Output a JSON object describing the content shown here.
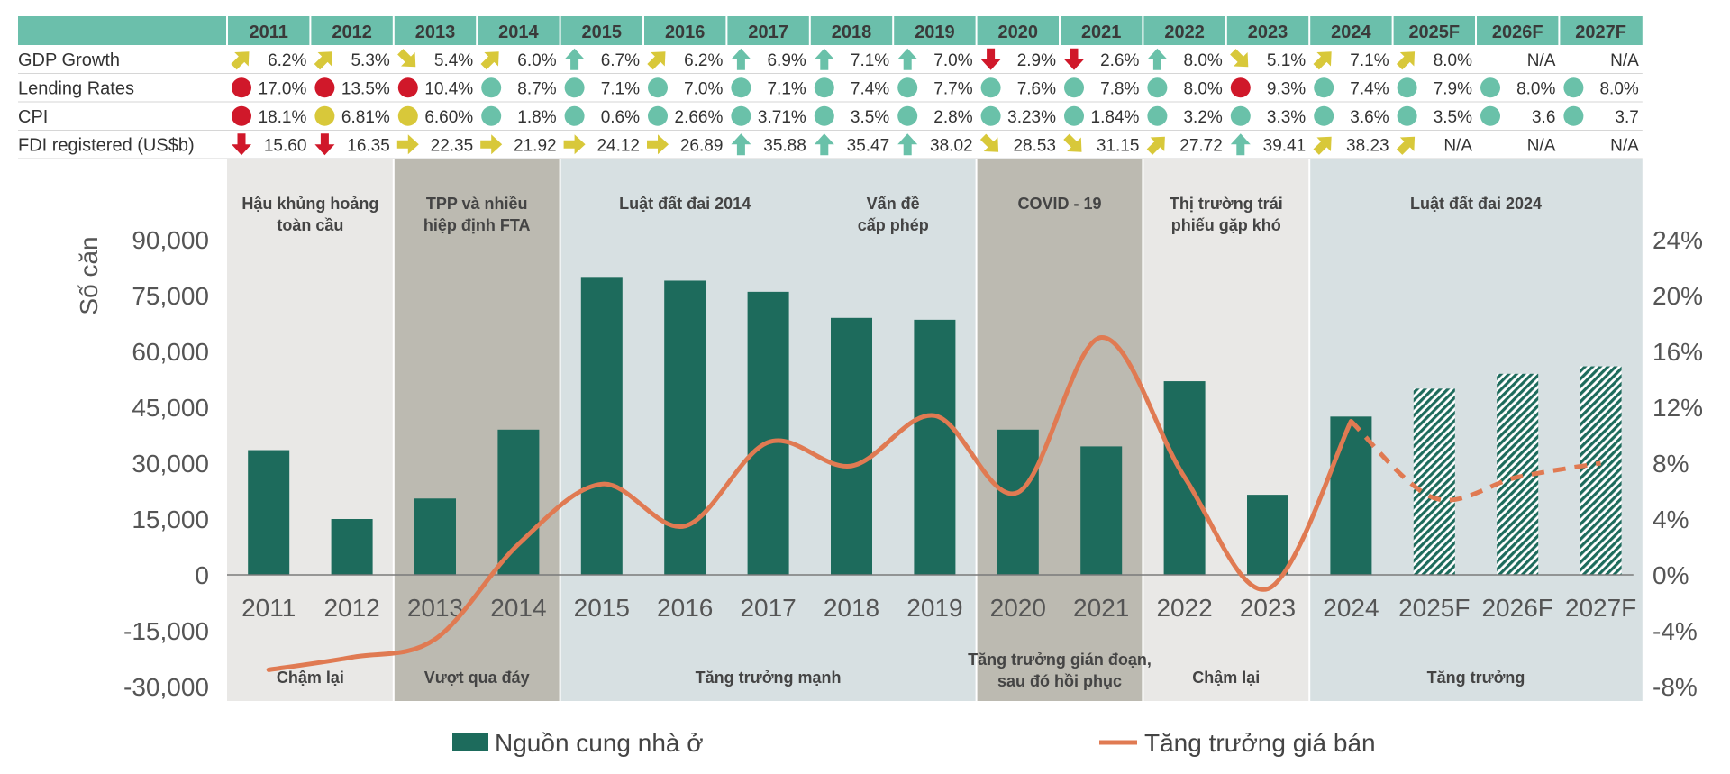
{
  "table": {
    "years": [
      "2011",
      "2012",
      "2013",
      "2014",
      "2015",
      "2016",
      "2017",
      "2018",
      "2019",
      "2020",
      "2021",
      "2022",
      "2023",
      "2024",
      "2025F",
      "2026F",
      "2027F"
    ],
    "rows": [
      {
        "label": "GDP Growth",
        "cells": [
          {
            "v": "6.2%",
            "i": "up-right"
          },
          {
            "v": "5.3%",
            "i": "up-right"
          },
          {
            "v": "5.4%",
            "i": "down-right"
          },
          {
            "v": "6.0%",
            "i": "up-right"
          },
          {
            "v": "6.7%",
            "i": "up"
          },
          {
            "v": "6.2%",
            "i": "up-right"
          },
          {
            "v": "6.9%",
            "i": "up"
          },
          {
            "v": "7.1%",
            "i": "up"
          },
          {
            "v": "7.0%",
            "i": "up"
          },
          {
            "v": "2.9%",
            "i": "down"
          },
          {
            "v": "2.6%",
            "i": "down"
          },
          {
            "v": "8.0%",
            "i": "up"
          },
          {
            "v": "5.1%",
            "i": "down-right"
          },
          {
            "v": "7.1%",
            "i": "up-right"
          },
          {
            "v": "8.0%",
            "i": "up-right"
          },
          {
            "v": "N/A",
            "i": ""
          },
          {
            "v": "N/A",
            "i": ""
          }
        ]
      },
      {
        "label": "Lending Rates",
        "cells": [
          {
            "v": "17.0%",
            "i": "red-dot"
          },
          {
            "v": "13.5%",
            "i": "red-dot"
          },
          {
            "v": "10.4%",
            "i": "red-dot"
          },
          {
            "v": "8.7%",
            "i": "green-dot"
          },
          {
            "v": "7.1%",
            "i": "green-dot"
          },
          {
            "v": "7.0%",
            "i": "green-dot"
          },
          {
            "v": "7.1%",
            "i": "green-dot"
          },
          {
            "v": "7.4%",
            "i": "green-dot"
          },
          {
            "v": "7.7%",
            "i": "green-dot"
          },
          {
            "v": "7.6%",
            "i": "green-dot"
          },
          {
            "v": "7.8%",
            "i": "green-dot"
          },
          {
            "v": "8.0%",
            "i": "green-dot"
          },
          {
            "v": "9.3%",
            "i": "red-dot"
          },
          {
            "v": "7.4%",
            "i": "green-dot"
          },
          {
            "v": "7.9%",
            "i": "green-dot"
          },
          {
            "v": "8.0%",
            "i": "green-dot"
          },
          {
            "v": "8.0%",
            "i": "green-dot"
          }
        ]
      },
      {
        "label": "CPI",
        "cells": [
          {
            "v": "18.1%",
            "i": "red-dot"
          },
          {
            "v": "6.81%",
            "i": "yellow-dot"
          },
          {
            "v": "6.60%",
            "i": "yellow-dot"
          },
          {
            "v": "1.8%",
            "i": "green-dot"
          },
          {
            "v": "0.6%",
            "i": "green-dot"
          },
          {
            "v": "2.66%",
            "i": "green-dot"
          },
          {
            "v": "3.71%",
            "i": "green-dot"
          },
          {
            "v": "3.5%",
            "i": "green-dot"
          },
          {
            "v": "2.8%",
            "i": "green-dot"
          },
          {
            "v": "3.23%",
            "i": "green-dot"
          },
          {
            "v": "1.84%",
            "i": "green-dot"
          },
          {
            "v": "3.2%",
            "i": "green-dot"
          },
          {
            "v": "3.3%",
            "i": "green-dot"
          },
          {
            "v": "3.6%",
            "i": "green-dot"
          },
          {
            "v": "3.5%",
            "i": "green-dot"
          },
          {
            "v": "3.6",
            "i": "green-dot"
          },
          {
            "v": "3.7",
            "i": "green-dot"
          }
        ]
      },
      {
        "label": "FDI registered (US$b)",
        "cells": [
          {
            "v": "15.60",
            "i": "down"
          },
          {
            "v": "16.35",
            "i": "down"
          },
          {
            "v": "22.35",
            "i": "right"
          },
          {
            "v": "21.92",
            "i": "right"
          },
          {
            "v": "24.12",
            "i": "right"
          },
          {
            "v": "26.89",
            "i": "right"
          },
          {
            "v": "35.88",
            "i": "up"
          },
          {
            "v": "35.47",
            "i": "up"
          },
          {
            "v": "38.02",
            "i": "up"
          },
          {
            "v": "28.53",
            "i": "down-right"
          },
          {
            "v": "31.15",
            "i": "down-right"
          },
          {
            "v": "27.72",
            "i": "up-right"
          },
          {
            "v": "39.41",
            "i": "up"
          },
          {
            "v": "38.23",
            "i": "up-right"
          },
          {
            "v": "N/A",
            "i": "up-right"
          },
          {
            "v": "N/A",
            "i": ""
          },
          {
            "v": "N/A",
            "i": ""
          }
        ]
      }
    ]
  },
  "periods": [
    {
      "from": 0,
      "to": 1,
      "color": "light-gray",
      "top": [
        "Hậu khủng hoảng",
        "toàn cầu"
      ],
      "bottom": [
        "Chậm lại"
      ]
    },
    {
      "from": 2,
      "to": 3,
      "color": "dark-gray",
      "top": [
        "TPP và nhiều",
        "hiệp định FTA"
      ],
      "bottom": [
        "Vượt qua đáy"
      ]
    },
    {
      "from": 4,
      "to": 8,
      "color": "blue-gray",
      "top": [],
      "bottom": [
        "Tăng trưởng mạnh"
      ]
    },
    {
      "from": 9,
      "to": 10,
      "color": "dark-gray",
      "top": [
        "COVID - 19"
      ],
      "bottom": [
        "Tăng trưởng gián đoạn,",
        "sau đó hồi phục"
      ]
    },
    {
      "from": 11,
      "to": 12,
      "color": "light-gray",
      "top": [
        "Thị trường trái",
        "phiếu gặp khó"
      ],
      "bottom": [
        "Chậm lại"
      ]
    },
    {
      "from": 13,
      "to": 16,
      "color": "blue-gray",
      "top": [
        "Luật đất đai 2024"
      ],
      "bottom": [
        "Tăng trưởng"
      ]
    }
  ],
  "extra_top_labels": [
    {
      "at": 5,
      "lines": [
        "Luật đất đai 2014"
      ]
    },
    {
      "at": 7.5,
      "lines": [
        "Vấn đề",
        "cấp phép"
      ]
    }
  ],
  "chart_data": {
    "type": "bar",
    "categories": [
      "2011",
      "2012",
      "2013",
      "2014",
      "2015",
      "2016",
      "2017",
      "2018",
      "2019",
      "2020",
      "2021",
      "2022",
      "2023",
      "2024",
      "2025F",
      "2026F",
      "2027F"
    ],
    "series": [
      {
        "name": "Nguồn cung nhà ở",
        "type": "bar",
        "axis": "left",
        "values": [
          33500,
          15000,
          20500,
          39000,
          80000,
          79000,
          76000,
          69000,
          68500,
          39000,
          34500,
          52000,
          21500,
          42500,
          50000,
          54000,
          56000
        ],
        "forecast_from_index": 14
      },
      {
        "name": "Tăng trưởng giá bán",
        "type": "line",
        "axis": "right",
        "values": [
          -6.8,
          -5.9,
          -4.6,
          2.2,
          6.5,
          3.5,
          9.5,
          7.8,
          11.4,
          5.9,
          17.0,
          7.0,
          -1.0,
          11.0,
          5.5,
          7.0,
          8.0
        ],
        "forecast_from_index": 13
      }
    ],
    "ylabel": "Số căn",
    "ylim": [
      -30000,
      90000
    ],
    "y_ticks": [
      "-30,000",
      "-15,000",
      "0",
      "15,000",
      "30,000",
      "45,000",
      "60,000",
      "75,000",
      "90,000"
    ],
    "y2lim": [
      -8,
      24
    ],
    "y2_ticks": [
      "-8%",
      "-4%",
      "0%",
      "4%",
      "8%",
      "12%",
      "16%",
      "20%",
      "24%"
    ],
    "grid": false,
    "legend_position": "bottom"
  },
  "legend": {
    "bar_label": "Nguồn cung nhà ở",
    "line_label": "Tăng trưởng giá bán"
  },
  "colors": {
    "bar": "#1d6b5c",
    "line": "#e07a52",
    "header": "#6bbfab",
    "light_gray": "#e9e8e6",
    "dark_gray": "#bcbab1",
    "blue_gray": "#d7e0e2",
    "red": "#d0182a",
    "yellow": "#d8c83a",
    "green": "#6ac1a9",
    "arrow_green": "#6ac1a9",
    "arrow_yellow": "#d8c83a",
    "arrow_red": "#d0182a"
  }
}
